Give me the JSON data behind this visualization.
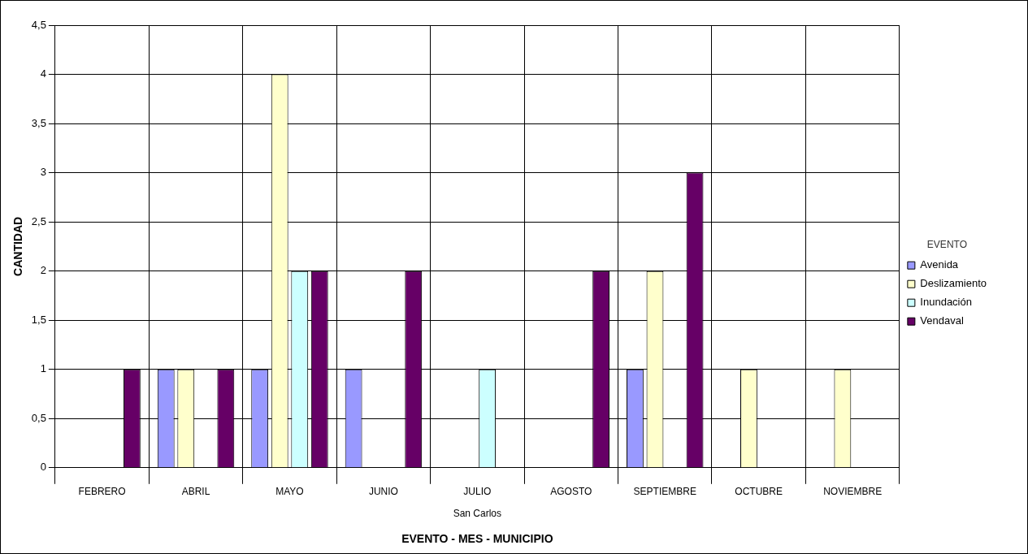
{
  "chart_data": {
    "type": "bar",
    "ylabel": "CANTIDAD",
    "xlabel": "EVENTO - MES - MUNICIPIO",
    "legend_title": "EVENTO",
    "annotations": [
      "San Carlos"
    ],
    "categories": [
      "FEBRERO",
      "ABRIL",
      "MAYO",
      "JUNIO",
      "JULIO",
      "AGOSTO",
      "SEPTIEMBRE",
      "OCTUBRE",
      "NOVIEMBRE"
    ],
    "series": [
      {
        "name": "Avenida",
        "color": "#9999ff",
        "values": [
          null,
          1,
          1,
          1,
          null,
          null,
          1,
          null,
          null
        ]
      },
      {
        "name": "Deslizamiento",
        "color": "#ffffcc",
        "values": [
          null,
          1,
          4,
          null,
          null,
          null,
          2,
          1,
          1
        ]
      },
      {
        "name": "Inundación",
        "color": "#ccffff",
        "values": [
          null,
          null,
          2,
          null,
          1,
          null,
          null,
          null,
          null
        ]
      },
      {
        "name": "Vendaval",
        "color": "#660066",
        "values": [
          1,
          1,
          2,
          2,
          null,
          2,
          3,
          null,
          null
        ]
      }
    ],
    "ylim": [
      0,
      4.5
    ],
    "yticks": [
      0,
      {
        "value": 0.5,
        "label": "0,5"
      },
      1,
      {
        "value": 1.5,
        "label": "1,5"
      },
      2,
      {
        "value": 2.5,
        "label": "2,5"
      },
      3,
      {
        "value": 3.5,
        "label": "3,5"
      },
      4,
      {
        "value": 4.5,
        "label": "4,5"
      }
    ],
    "grid": true,
    "legend": "right"
  }
}
